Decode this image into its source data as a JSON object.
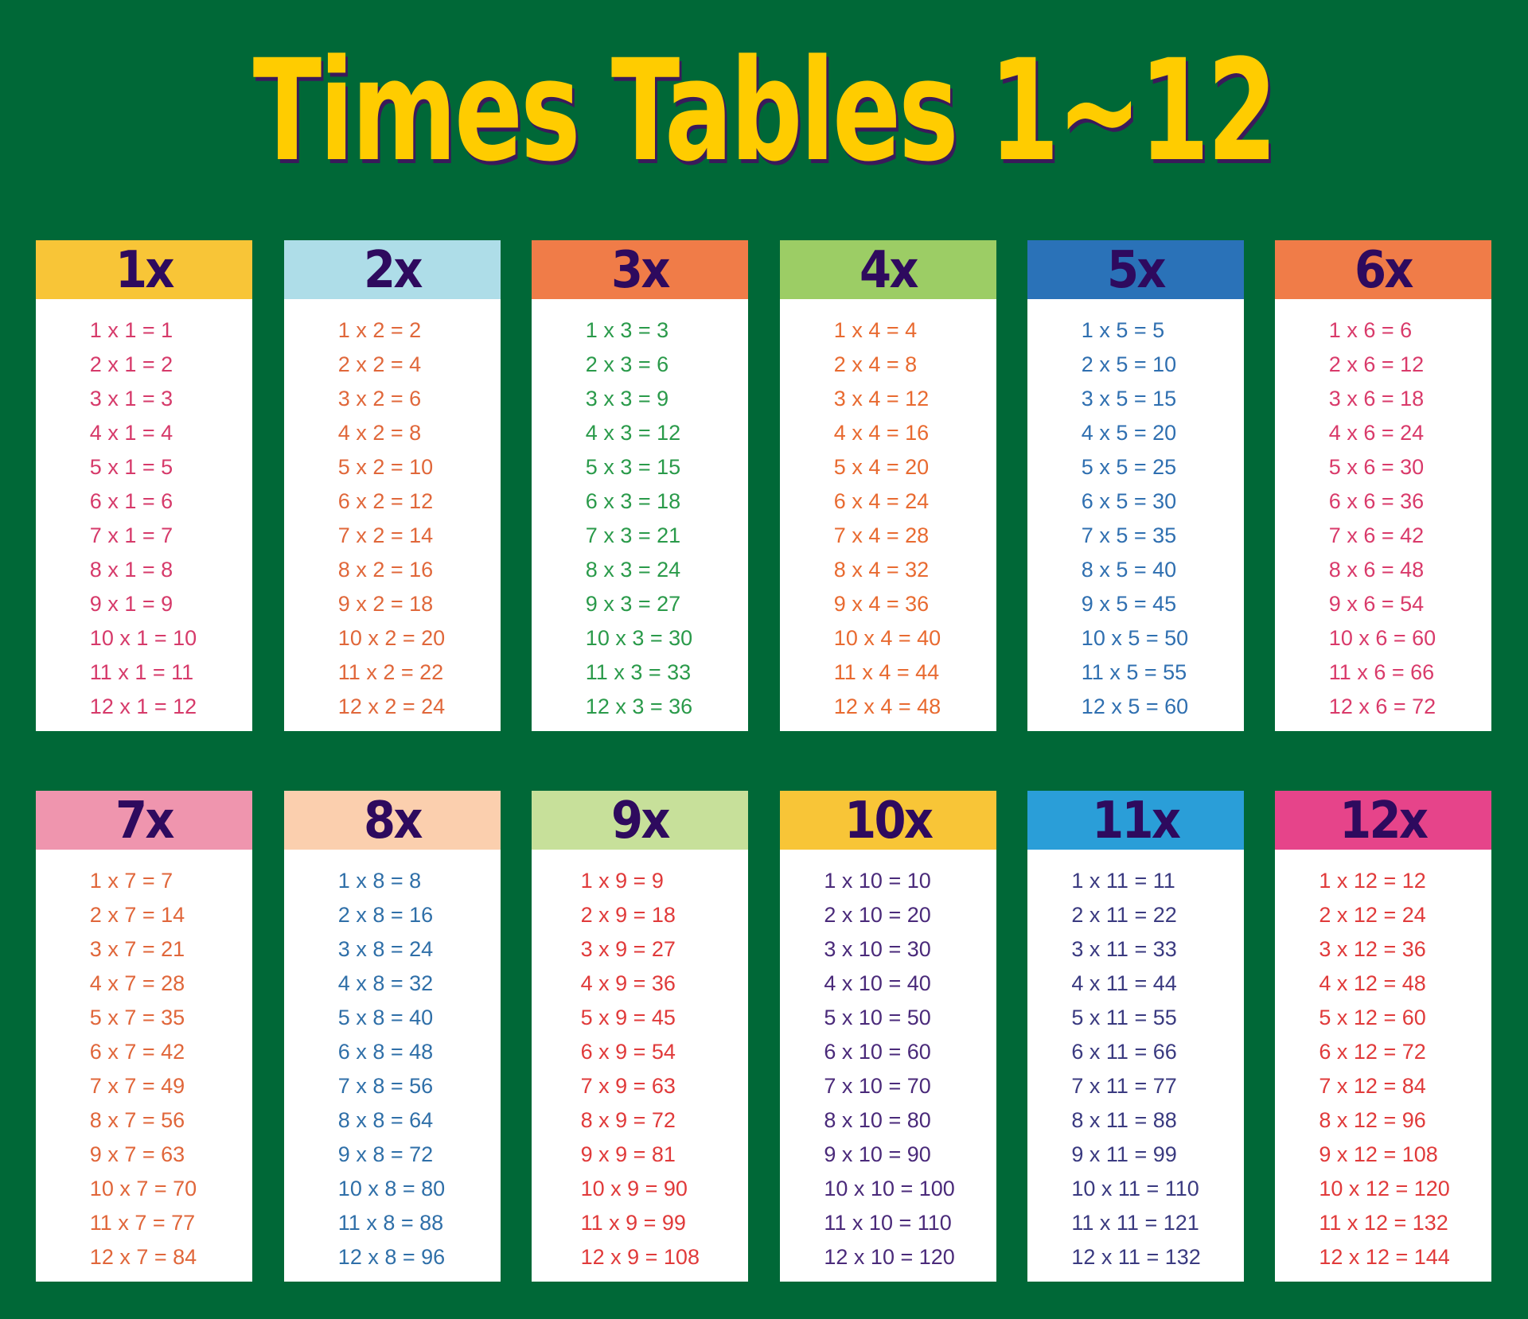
{
  "title": "Times Tables 1~12",
  "colors": {
    "background": "#006837",
    "title": "#ffcc00",
    "header_text": "#2e0a5e"
  },
  "tables": [
    {
      "label": "1x",
      "header_color": "#f8c537",
      "text_color": "#d63a6a",
      "rows": [
        "1 x 1 = 1",
        "2 x 1 = 2",
        "3 x 1 = 3",
        "4 x 1 = 4",
        "5 x 1 = 5",
        "6 x 1 = 6",
        "7 x 1 = 7",
        "8 x 1 = 8",
        "9 x 1 = 9",
        "10 x 1 = 10",
        "11 x 1 = 11",
        "12 x 1 = 12"
      ]
    },
    {
      "label": "2x",
      "header_color": "#aedde8",
      "text_color": "#e0673a",
      "rows": [
        "1 x 2 = 2",
        "2 x 2 = 4",
        "3 x 2 = 6",
        "4 x 2 = 8",
        "5 x 2 = 10",
        "6 x 2 = 12",
        "7 x 2 = 14",
        "8 x 2 = 16",
        "9 x 2 = 18",
        "10 x 2 = 20",
        "11 x 2 = 22",
        "12 x 2 = 24"
      ]
    },
    {
      "label": "3x",
      "header_color": "#f07c48",
      "text_color": "#2a9a4a",
      "rows": [
        "1 x 3 = 3",
        "2 x 3 = 6",
        "3 x 3 = 9",
        "4 x 3 = 12",
        "5 x 3 = 15",
        "6 x 3 = 18",
        "7 x 3 = 21",
        "8 x 3 = 24",
        "9 x 3 = 27",
        "10 x 3 = 30",
        "11 x 3 = 33",
        "12 x 3 = 36"
      ]
    },
    {
      "label": "4x",
      "header_color": "#9ccd65",
      "text_color": "#e86a30",
      "rows": [
        "1 x 4 = 4",
        "2 x 4 = 8",
        "3 x 4 = 12",
        "4 x 4 = 16",
        "5 x 4 = 20",
        "6 x 4 = 24",
        "7 x 4 = 28",
        "8 x 4 = 32",
        "9 x 4 = 36",
        "10 x 4 = 40",
        "11 x 4 = 44",
        "12 x 4 = 48"
      ]
    },
    {
      "label": "5x",
      "header_color": "#2a72b8",
      "text_color": "#2f6fb0",
      "rows": [
        "1 x 5 = 5",
        "2 x 5 = 10",
        "3 x 5 = 15",
        "4 x 5 = 20",
        "5 x 5 = 25",
        "6 x 5 = 30",
        "7 x 5 = 35",
        "8 x 5 = 40",
        "9 x 5 = 45",
        "10 x 5 = 50",
        "11 x 5 = 55",
        "12 x 5 = 60"
      ]
    },
    {
      "label": "6x",
      "header_color": "#f07c48",
      "text_color": "#d93a6a",
      "rows": [
        "1 x 6 = 6",
        "2 x 6 = 12",
        "3 x 6 = 18",
        "4 x 6 = 24",
        "5 x 6 = 30",
        "6 x 6 = 36",
        "7 x 6 = 42",
        "8 x 6 = 48",
        "9 x 6 = 54",
        "10 x 6 = 60",
        "11 x 6 = 66",
        "12 x 6 = 72"
      ]
    },
    {
      "label": "7x",
      "header_color": "#ef95ae",
      "text_color": "#e0663a",
      "rows": [
        "1 x 7 = 7",
        "2 x 7 = 14",
        "3 x 7 = 21",
        "4 x 7 = 28",
        "5 x 7 = 35",
        "6 x 7 = 42",
        "7 x 7 = 49",
        "8 x 7 = 56",
        "9 x 7 = 63",
        "10 x 7 = 70",
        "11 x 7 = 77",
        "12 x 7 = 84"
      ]
    },
    {
      "label": "8x",
      "header_color": "#fbcfae",
      "text_color": "#2f6fa8",
      "rows": [
        "1 x 8 = 8",
        "2 x 8 = 16",
        "3 x 8 = 24",
        "4 x 8 = 32",
        "5 x 8 = 40",
        "6 x 8 = 48",
        "7 x 8 = 56",
        "8 x 8 = 64",
        "9 x 8 = 72",
        "10 x 8 = 80",
        "11 x 8 = 88",
        "12 x 8 = 96"
      ]
    },
    {
      "label": "9x",
      "header_color": "#c7e09a",
      "text_color": "#e03a3a",
      "rows": [
        "1 x 9 = 9",
        "2 x 9 = 18",
        "3 x 9 = 27",
        "4 x 9 = 36",
        "5 x 9 = 45",
        "6 x 9 = 54",
        "7 x 9 = 63",
        "8 x 9 = 72",
        "9 x 9 = 81",
        "10 x 9 = 90",
        "11 x 9 = 99",
        "12 x 9 = 108"
      ]
    },
    {
      "label": "10x",
      "header_color": "#f8c537",
      "text_color": "#4a2a7a",
      "rows": [
        "1 x 10 = 10",
        "2 x 10 = 20",
        "3 x 10 = 30",
        "4 x 10 = 40",
        "5 x 10 = 50",
        "6 x 10 = 60",
        "7 x 10 = 70",
        "8 x 10 = 80",
        "9 x 10 = 90",
        "10 x 10 = 100",
        "11 x 10 = 110",
        "12 x 10 = 120"
      ]
    },
    {
      "label": "11x",
      "header_color": "#2a9ed8",
      "text_color": "#3a3a80",
      "rows": [
        "1 x 11 = 11",
        "2 x 11 = 22",
        "3 x 11 = 33",
        "4 x 11 = 44",
        "5 x 11 = 55",
        "6 x 11 = 66",
        "7 x 11 = 77",
        "8 x 11 = 88",
        "9 x 11 = 99",
        "10 x 11 = 110",
        "11 x 11 = 121",
        "12 x 11 = 132"
      ]
    },
    {
      "label": "12x",
      "header_color": "#e6448a",
      "text_color": "#e03a3a",
      "rows": [
        "1 x 12 = 12",
        "2 x 12 = 24",
        "3 x 12 = 36",
        "4 x 12 = 48",
        "5 x 12 = 60",
        "6 x 12 = 72",
        "7 x 12 = 84",
        "8 x 12 = 96",
        "9 x 12 = 108",
        "10 x 12 = 120",
        "11 x 12 = 132",
        "12 x 12 = 144"
      ]
    }
  ]
}
